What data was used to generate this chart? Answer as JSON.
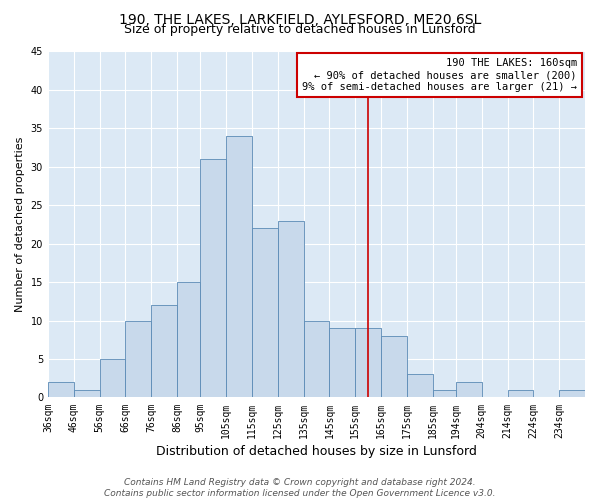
{
  "title": "190, THE LAKES, LARKFIELD, AYLESFORD, ME20 6SL",
  "subtitle": "Size of property relative to detached houses in Lunsford",
  "xlabel": "Distribution of detached houses by size in Lunsford",
  "ylabel": "Number of detached properties",
  "bin_labels": [
    "36sqm",
    "46sqm",
    "56sqm",
    "66sqm",
    "76sqm",
    "86sqm",
    "95sqm",
    "105sqm",
    "115sqm",
    "125sqm",
    "135sqm",
    "145sqm",
    "155sqm",
    "165sqm",
    "175sqm",
    "185sqm",
    "194sqm",
    "204sqm",
    "214sqm",
    "224sqm",
    "234sqm"
  ],
  "bin_edges": [
    36,
    46,
    56,
    66,
    76,
    86,
    95,
    105,
    115,
    125,
    135,
    145,
    155,
    165,
    175,
    185,
    194,
    204,
    214,
    224,
    234,
    244
  ],
  "bar_heights": [
    2,
    1,
    5,
    10,
    12,
    15,
    31,
    34,
    22,
    23,
    10,
    9,
    9,
    8,
    3,
    1,
    2,
    0,
    1,
    0,
    1
  ],
  "bar_color": "#c8d9eb",
  "bar_edge_color": "#5a8ab5",
  "reference_line_x": 160,
  "reference_line_color": "#cc0000",
  "annotation_box_text": "190 THE LAKES: 160sqm\n← 90% of detached houses are smaller (200)\n9% of semi-detached houses are larger (21) →",
  "annotation_box_edge_color": "#cc0000",
  "ylim": [
    0,
    45
  ],
  "yticks": [
    0,
    5,
    10,
    15,
    20,
    25,
    30,
    35,
    40,
    45
  ],
  "figure_bg_color": "#ffffff",
  "plot_bg_color": "#dce9f5",
  "grid_color": "#ffffff",
  "footer_text": "Contains HM Land Registry data © Crown copyright and database right 2024.\nContains public sector information licensed under the Open Government Licence v3.0.",
  "title_fontsize": 10,
  "subtitle_fontsize": 9,
  "xlabel_fontsize": 9,
  "ylabel_fontsize": 8,
  "tick_fontsize": 7,
  "annotation_fontsize": 7.5,
  "footer_fontsize": 6.5
}
